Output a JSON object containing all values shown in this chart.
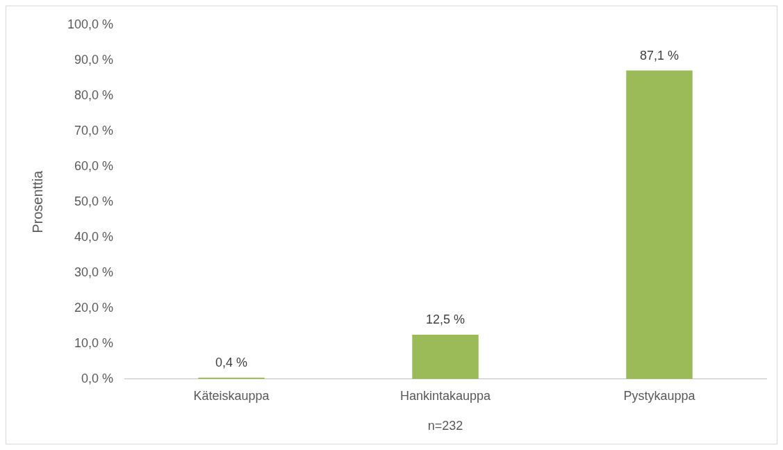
{
  "chart_data": {
    "type": "bar",
    "ylabel": "Prosenttia",
    "xlabel": "n=232",
    "categories": [
      "Käteiskauppa",
      "Hankintakauppa",
      "Pystykauppa"
    ],
    "values": [
      0.4,
      12.5,
      87.1
    ],
    "color": "#9bbb59",
    "value_labels": [
      "0,4 %",
      "12,5 %",
      "87,1 %"
    ],
    "ylim": [
      0,
      100
    ],
    "yticks": [
      {
        "value": 0,
        "label": "0,0 %"
      },
      {
        "value": 10,
        "label": "10,0 %"
      },
      {
        "value": 20,
        "label": "20,0 %"
      },
      {
        "value": 30,
        "label": "30,0 %"
      },
      {
        "value": 40,
        "label": "40,0 %"
      },
      {
        "value": 50,
        "label": "50,0 %"
      },
      {
        "value": 60,
        "label": "60,0 %"
      },
      {
        "value": 70,
        "label": "70,0 %"
      },
      {
        "value": 80,
        "label": "80,0 %"
      },
      {
        "value": 90,
        "label": "90,0 %"
      },
      {
        "value": 100,
        "label": "100,0 %"
      }
    ],
    "grid": false,
    "legend": false
  }
}
